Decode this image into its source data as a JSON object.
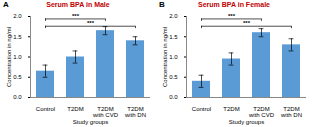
{
  "chart_data": [
    {
      "type": "bar",
      "panel": "A",
      "title": "Serum BPA in Male",
      "x_label": "Study groups",
      "y_label": "Concentration in ng/ml",
      "categories": [
        "Control",
        "T2DM",
        "T2DM with CVD",
        "T2DM with DN"
      ],
      "values": [
        0.65,
        1.0,
        1.65,
        1.4
      ],
      "errors": [
        0.15,
        0.15,
        0.1,
        0.1
      ],
      "color": "#5b9bd5",
      "ylim": [
        0,
        2
      ],
      "yticks": [
        0,
        0.5,
        1,
        1.5,
        2
      ],
      "grid": false,
      "annotations": [
        {
          "text": "***",
          "from": "Control",
          "to": "T2DM with CVD"
        },
        {
          "text": "***",
          "from": "Control",
          "to": "T2DM with DN"
        }
      ]
    },
    {
      "type": "bar",
      "panel": "B",
      "title": "Serum BPA in Female",
      "x_label": "Study groups",
      "y_label": "Concentration in ng/ml",
      "categories": [
        "Control",
        "T2DM",
        "T2DM with CVD",
        "T2DM with DN"
      ],
      "values": [
        0.4,
        0.95,
        1.6,
        1.3
      ],
      "errors": [
        0.15,
        0.15,
        0.1,
        0.15
      ],
      "color": "#5b9bd5",
      "ylim": [
        0,
        2
      ],
      "yticks": [
        0,
        0.5,
        1,
        1.5,
        2
      ],
      "grid": false,
      "annotations": [
        {
          "text": "***",
          "from": "Control",
          "to": "T2DM with CVD"
        },
        {
          "text": "***",
          "from": "Control",
          "to": "T2DM with DN"
        }
      ]
    }
  ]
}
